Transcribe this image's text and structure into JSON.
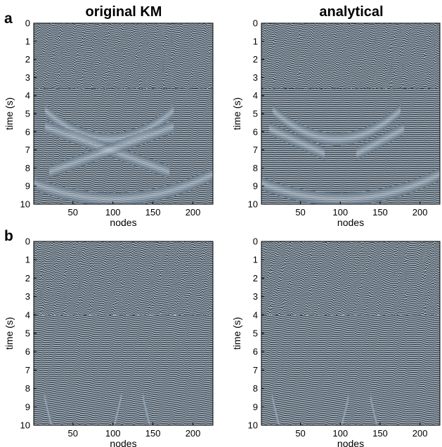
{
  "figure": {
    "column_titles": [
      "original KM",
      "analytical"
    ],
    "row_labels": [
      "a",
      "b"
    ]
  },
  "chart_data": [
    {
      "type": "heatmap",
      "id": "panel-a-original",
      "row": "a",
      "column": "original KM",
      "xlabel": "nodes",
      "ylabel": "time (s)",
      "xlim": [
        1,
        225
      ],
      "ylim": [
        0,
        10
      ],
      "y_reversed": true,
      "xticks": [
        50,
        100,
        150,
        200
      ],
      "yticks": [
        0,
        1,
        2,
        3,
        4,
        5,
        6,
        7,
        8,
        9,
        10
      ],
      "colormap": [
        "#0f1a24",
        "#5f7385",
        "#f2f5f7"
      ],
      "stripe_period_s": 0.11,
      "events": [
        {
          "name": "upper-arc",
          "center": 95,
          "half_width": 80,
          "t0": 2.4,
          "t1": 4.0
        },
        {
          "name": "lower-arc",
          "center": 100,
          "half_width": 130,
          "t0": 4.1,
          "t1": 5.6
        },
        {
          "name": "left-x-limb",
          "from": [
            15,
            5.7
          ],
          "to": [
            170,
            8.2
          ]
        },
        {
          "name": "right-x-limb",
          "from": [
            175,
            5.7
          ],
          "to": [
            20,
            8.2
          ]
        }
      ],
      "noise_above_s": 3.6,
      "background_noise": 0.35
    },
    {
      "type": "heatmap",
      "id": "panel-a-analytical",
      "row": "a",
      "column": "analytical",
      "xlabel": "nodes",
      "ylabel": "time (s)",
      "xlim": [
        1,
        225
      ],
      "ylim": [
        0,
        10
      ],
      "y_reversed": true,
      "xticks": [
        50,
        100,
        150,
        200
      ],
      "yticks": [
        0,
        1,
        2,
        3,
        4,
        5,
        6,
        7,
        8,
        9,
        10
      ],
      "colormap": [
        "#0f1a24",
        "#5f7385",
        "#f2f5f7"
      ],
      "stripe_period_s": 0.11,
      "events": [
        {
          "name": "upper-arc",
          "center": 95,
          "half_width": 80,
          "t0": 2.4,
          "t1": 4.0
        },
        {
          "name": "lower-arc",
          "center": 100,
          "half_width": 130,
          "t0": 4.1,
          "t1": 5.6
        },
        {
          "name": "left-wedge",
          "from": [
            10,
            5.8
          ],
          "to": [
            80,
            7.2
          ]
        },
        {
          "name": "right-wedge",
          "from": [
            180,
            5.8
          ],
          "to": [
            120,
            7.2
          ]
        }
      ],
      "noise_above_s": 3.6,
      "background_noise": 0.2
    },
    {
      "type": "heatmap",
      "id": "panel-b-original",
      "row": "b",
      "column": "original KM",
      "xlabel": "nodes",
      "ylabel": "time (s)",
      "xlim": [
        1,
        225
      ],
      "ylim": [
        0,
        10
      ],
      "y_reversed": true,
      "xticks": [
        50,
        100,
        150,
        200
      ],
      "yticks": [
        0,
        1,
        2,
        3,
        4,
        5,
        6,
        7,
        8,
        9,
        10
      ],
      "colormap": [
        "#0f1a24",
        "#5f7385",
        "#f2f5f7"
      ],
      "stripe_period_s": 0.11,
      "events": [
        {
          "name": "left-bowl",
          "center": 62,
          "half_width": 48,
          "t0": 4.2,
          "t1": 9.0
        },
        {
          "name": "right-bowl",
          "center": 185,
          "half_width": 48,
          "t0": 4.2,
          "t1": 9.0
        }
      ],
      "noise_above_s": 4.0,
      "background_noise": 0.35
    },
    {
      "type": "heatmap",
      "id": "panel-b-analytical",
      "row": "b",
      "column": "analytical",
      "xlabel": "nodes",
      "ylabel": "time (s)",
      "xlim": [
        1,
        225
      ],
      "ylim": [
        0,
        10
      ],
      "y_reversed": true,
      "xticks": [
        50,
        100,
        150,
        200
      ],
      "yticks": [
        0,
        1,
        2,
        3,
        4,
        5,
        6,
        7,
        8,
        9,
        10
      ],
      "colormap": [
        "#0f1a24",
        "#5f7385",
        "#f2f5f7"
      ],
      "stripe_period_s": 0.11,
      "events": [
        {
          "name": "left-bowl",
          "center": 62,
          "half_width": 48,
          "t0": 4.2,
          "t1": 9.0
        },
        {
          "name": "right-bowl",
          "center": 185,
          "half_width": 48,
          "t0": 4.2,
          "t1": 9.0
        }
      ],
      "noise_above_s": 4.0,
      "background_noise": 0.35
    }
  ]
}
